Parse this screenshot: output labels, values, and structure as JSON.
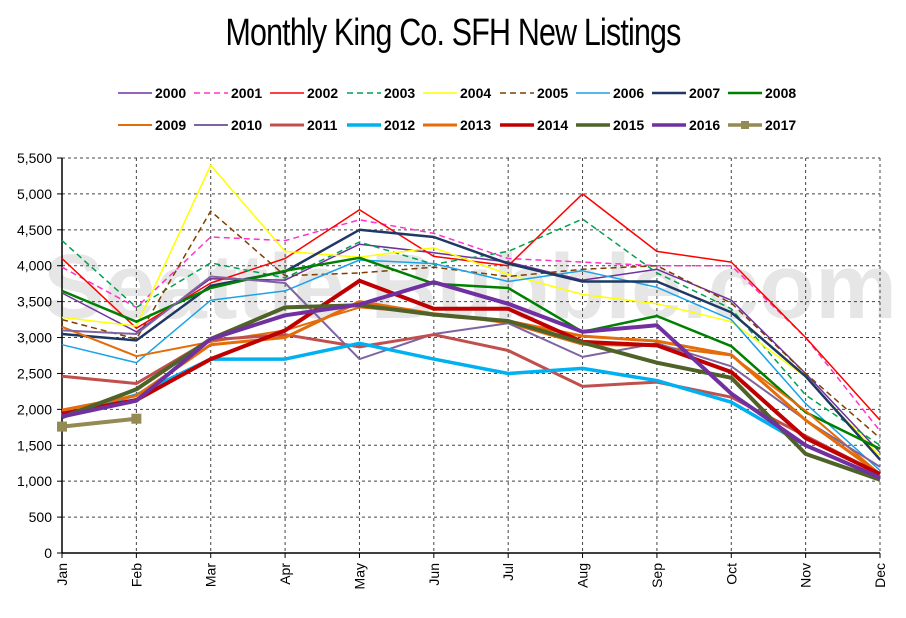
{
  "chart_data": {
    "type": "line",
    "title": "Monthly King Co. SFH New Listings",
    "watermark": "Seattle Bubble.com",
    "xlabel": "",
    "ylabel": "",
    "categories": [
      "Jan",
      "Feb",
      "Mar",
      "Apr",
      "May",
      "Jun",
      "Jul",
      "Aug",
      "Sep",
      "Oct",
      "Nov",
      "Dec"
    ],
    "ylim": [
      0,
      5500
    ],
    "yticks": [
      0,
      500,
      1000,
      1500,
      2000,
      2500,
      3000,
      3500,
      4000,
      4500,
      5000,
      5500
    ],
    "ytick_labels": [
      "0",
      "500",
      "1,000",
      "1,500",
      "2,000",
      "2,500",
      "3,000",
      "3,500",
      "4,000",
      "4,500",
      "5,000",
      "5,500"
    ],
    "grid": true,
    "legend_position": "top",
    "series": [
      {
        "name": "2000",
        "color": "#7030a0",
        "width": 1.5,
        "dash": "",
        "values": [
          3620,
          3080,
          3820,
          3800,
          4300,
          4180,
          4050,
          3800,
          3950,
          3520,
          2500,
          1400
        ]
      },
      {
        "name": "2001",
        "color": "#ff33cc",
        "width": 1.5,
        "dash": "6,4",
        "values": [
          3980,
          3420,
          4400,
          4350,
          4640,
          4450,
          4100,
          4050,
          4000,
          4000,
          3000,
          1700
        ]
      },
      {
        "name": "2002",
        "color": "#ff0000",
        "width": 1.5,
        "dash": "",
        "values": [
          4100,
          3130,
          3760,
          4100,
          4780,
          4130,
          4000,
          5000,
          4200,
          4050,
          3000,
          1850
        ]
      },
      {
        "name": "2003",
        "color": "#00a050",
        "width": 1.5,
        "dash": "6,4",
        "values": [
          4350,
          3420,
          4040,
          3830,
          4330,
          4020,
          4200,
          4650,
          3900,
          3400,
          2200,
          1500
        ]
      },
      {
        "name": "2004",
        "color": "#ffff00",
        "width": 1.5,
        "dash": "",
        "values": [
          3280,
          3160,
          5400,
          4200,
          4120,
          4250,
          3880,
          3600,
          3470,
          3220,
          2450,
          1350
        ]
      },
      {
        "name": "2005",
        "color": "#7f3f00",
        "width": 1.5,
        "dash": "6,4",
        "values": [
          3250,
          2980,
          4760,
          3860,
          3900,
          3980,
          3850,
          3950,
          4000,
          3480,
          2500,
          1600
        ]
      },
      {
        "name": "2006",
        "color": "#1aa3e8",
        "width": 1.5,
        "dash": "",
        "values": [
          2900,
          2650,
          3520,
          3650,
          4080,
          4030,
          3780,
          3930,
          3700,
          3250,
          2080,
          1150
        ]
      },
      {
        "name": "2007",
        "color": "#1f3864",
        "width": 2.5,
        "dash": "",
        "values": [
          3050,
          2960,
          3720,
          3920,
          4500,
          4400,
          4030,
          3780,
          3780,
          3350,
          2460,
          1300
        ]
      },
      {
        "name": "2008",
        "color": "#008000",
        "width": 2.5,
        "dash": "",
        "values": [
          3650,
          3220,
          3690,
          3930,
          4110,
          3750,
          3690,
          3080,
          3300,
          2880,
          1960,
          1450
        ]
      },
      {
        "name": "2009",
        "color": "#e46c0a",
        "width": 2,
        "dash": "",
        "values": [
          3150,
          2740,
          2940,
          3100,
          3420,
          3330,
          3200,
          2900,
          2880,
          2750,
          1980,
          1100
        ]
      },
      {
        "name": "2010",
        "color": "#8064a2",
        "width": 2,
        "dash": "",
        "values": [
          3100,
          3050,
          3850,
          3760,
          2700,
          3050,
          3200,
          2730,
          2920,
          2600,
          1850,
          1200
        ]
      },
      {
        "name": "2011",
        "color": "#c0504d",
        "width": 3,
        "dash": "",
        "values": [
          2460,
          2360,
          2970,
          3040,
          2870,
          3040,
          2820,
          2320,
          2380,
          2170,
          1630,
          1100
        ]
      },
      {
        "name": "2012",
        "color": "#00b0f0",
        "width": 3.5,
        "dash": "",
        "values": [
          1920,
          2200,
          2700,
          2700,
          2920,
          2700,
          2500,
          2570,
          2400,
          2100,
          1500,
          1050
        ]
      },
      {
        "name": "2013",
        "color": "#e46c0a",
        "width": 3,
        "dash": "",
        "values": [
          1990,
          2190,
          2900,
          3000,
          3500,
          3330,
          3230,
          3020,
          2950,
          2760,
          1850,
          1100
        ]
      },
      {
        "name": "2014",
        "color": "#c00000",
        "width": 4,
        "dash": "",
        "values": [
          1940,
          2130,
          2700,
          3100,
          3790,
          3400,
          3400,
          2940,
          2890,
          2520,
          1600,
          1100
        ]
      },
      {
        "name": "2015",
        "color": "#4f6228",
        "width": 4,
        "dash": "",
        "values": [
          1890,
          2280,
          2980,
          3420,
          3450,
          3320,
          3230,
          2930,
          2650,
          2440,
          1380,
          1020
        ]
      },
      {
        "name": "2016",
        "color": "#7030a0",
        "width": 4,
        "dash": "",
        "values": [
          1900,
          2120,
          2980,
          3310,
          3460,
          3770,
          3470,
          3080,
          3170,
          2220,
          1500,
          1050
        ]
      },
      {
        "name": "2017",
        "color": "#948a54",
        "width": 4,
        "dash": "",
        "marker": "square",
        "values": [
          1760,
          1870,
          null,
          null,
          null,
          null,
          null,
          null,
          null,
          null,
          null,
          null
        ]
      }
    ]
  }
}
